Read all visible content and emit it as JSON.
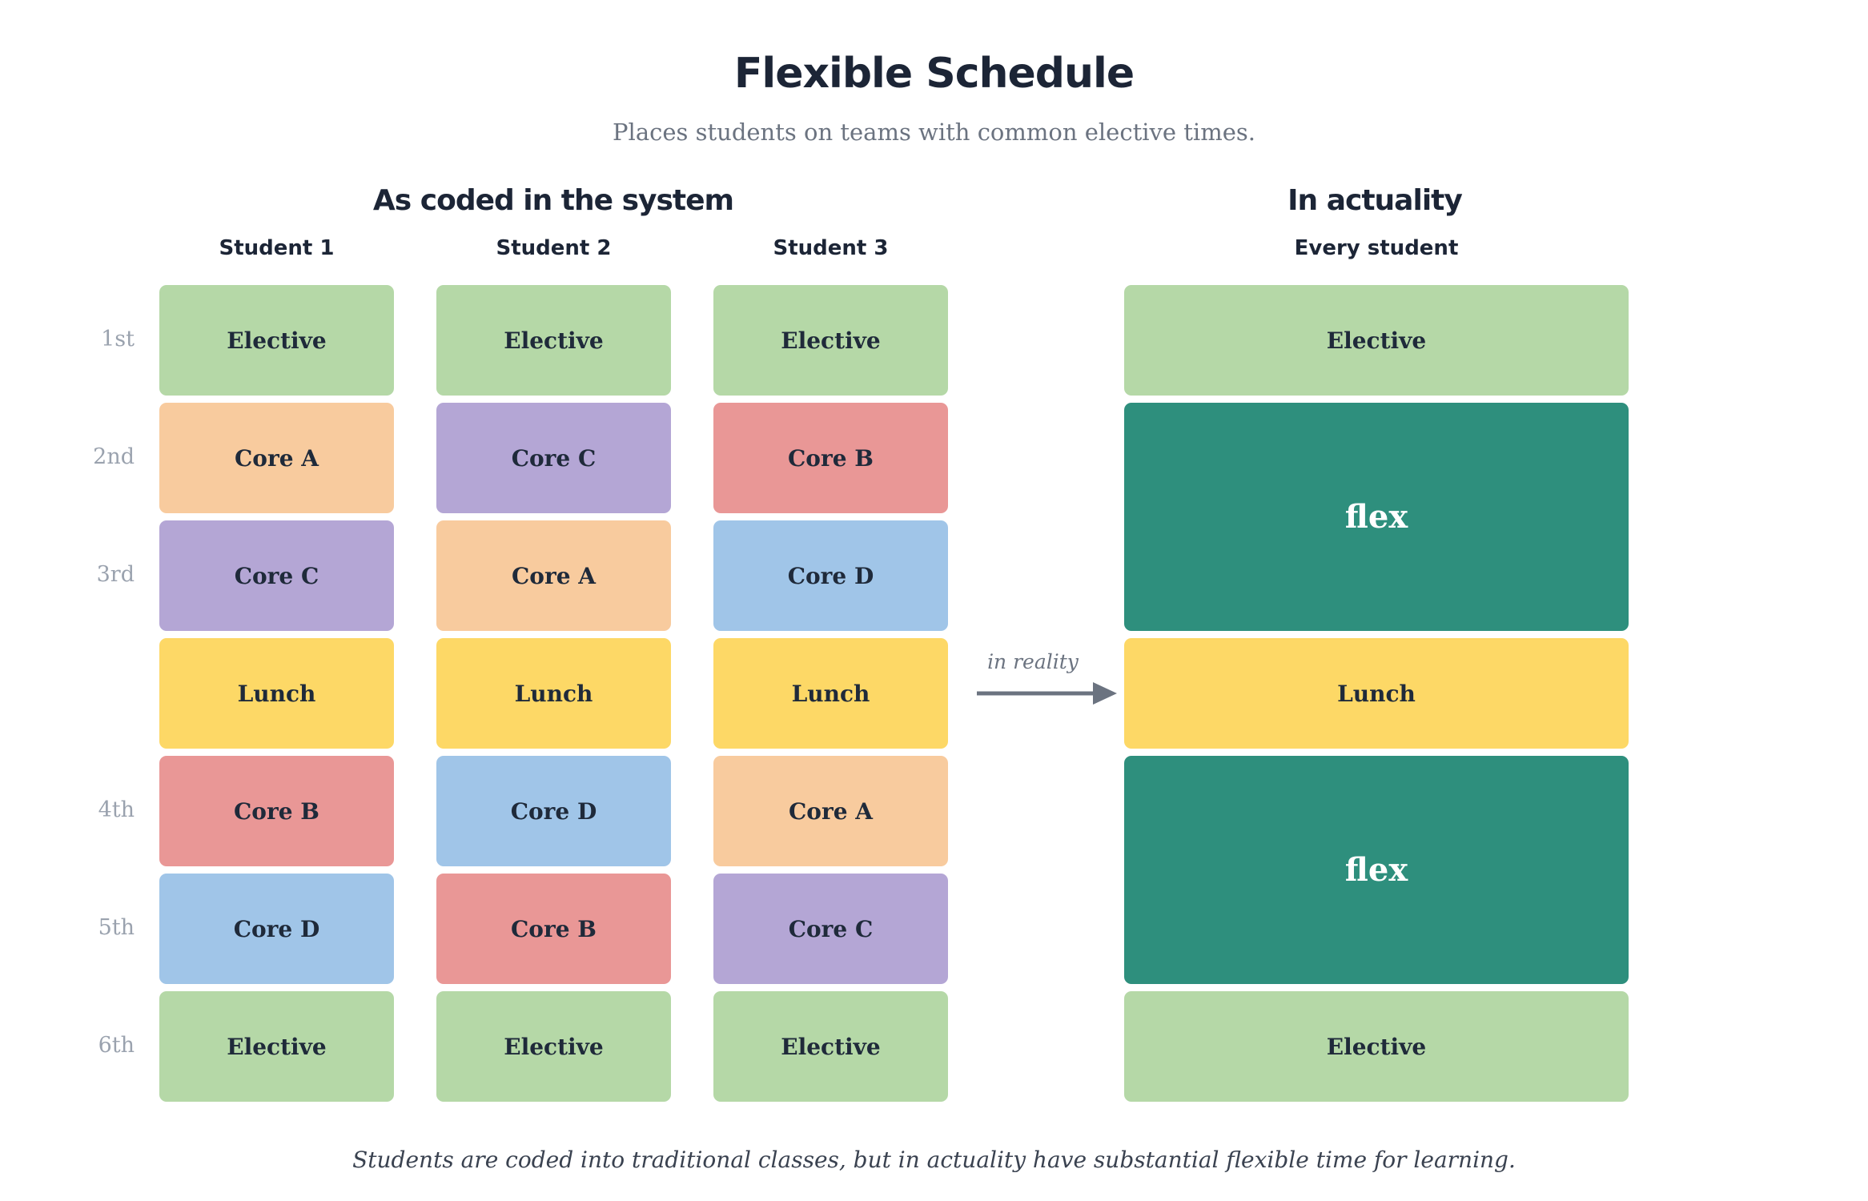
{
  "title": "Flexible Schedule",
  "subtitle": "Places students on teams with common elective times.",
  "left_section": {
    "title": "As coded in the system",
    "students": [
      "Student 1",
      "Student 2",
      "Student 3"
    ]
  },
  "right_section": {
    "title": "In actuality",
    "header": "Every student"
  },
  "period_labels": [
    "1st",
    "2nd",
    "3rd",
    "",
    "4th",
    "5th",
    "6th"
  ],
  "colors": {
    "Elective": "#b5d8a7",
    "Core A": "#f8cb9e",
    "Core B": "#e99796",
    "Core C": "#b4a6d5",
    "Core D": "#a0c5e8",
    "Lunch": "#fdd866",
    "flex": "#2e8f7d"
  },
  "schedules": [
    [
      "Elective",
      "Core A",
      "Core C",
      "Lunch",
      "Core B",
      "Core D",
      "Elective"
    ],
    [
      "Elective",
      "Core C",
      "Core A",
      "Lunch",
      "Core D",
      "Core B",
      "Elective"
    ],
    [
      "Elective",
      "Core B",
      "Core D",
      "Lunch",
      "Core A",
      "Core C",
      "Elective"
    ]
  ],
  "actuality": [
    {
      "label": "Elective",
      "rows": 1
    },
    {
      "label": "flex",
      "rows": 2
    },
    {
      "label": "Lunch",
      "rows": 1
    },
    {
      "label": "flex",
      "rows": 2
    },
    {
      "label": "Elective",
      "rows": 1
    }
  ],
  "arrow_label": "in reality",
  "footer": "Students are coded into traditional classes, but in actuality have substantial flexible time for learning."
}
